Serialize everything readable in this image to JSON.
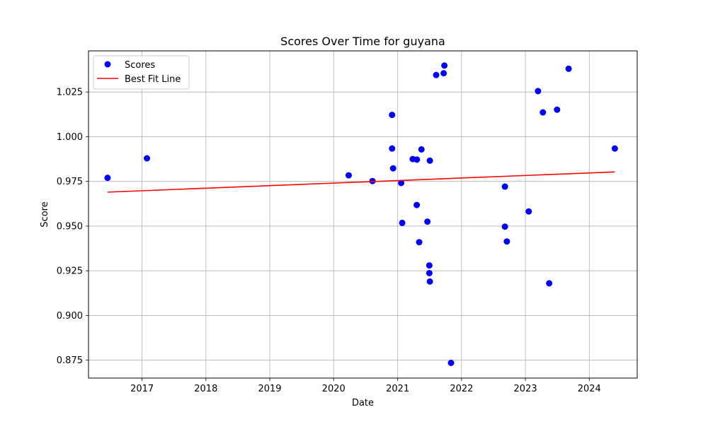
{
  "chart_data": {
    "type": "scatter",
    "title": "Scores Over Time for guyana",
    "xlabel": "Date",
    "ylabel": "Score",
    "x_axis_type": "date",
    "xlim": [
      "2016-03-01",
      "2024-10-01"
    ],
    "ylim": [
      0.865,
      1.048
    ],
    "x_ticks": [
      "2017-01-01",
      "2018-01-01",
      "2019-01-01",
      "2020-01-01",
      "2021-01-01",
      "2022-01-01",
      "2023-01-01",
      "2024-01-01"
    ],
    "x_tick_labels": [
      "2017",
      "2018",
      "2019",
      "2020",
      "2021",
      "2022",
      "2023",
      "2024"
    ],
    "y_ticks": [
      0.875,
      0.9,
      0.925,
      0.95,
      0.975,
      1.0,
      1.025
    ],
    "y_tick_labels": [
      "0.875",
      "0.900",
      "0.925",
      "0.950",
      "0.975",
      "1.000",
      "1.025"
    ],
    "grid": true,
    "legend_position": "upper-left",
    "series": [
      {
        "name": "Scores",
        "kind": "scatter",
        "color": "#0000ff",
        "points": [
          {
            "x": "2016-06-18",
            "y": 0.977
          },
          {
            "x": "2017-01-29",
            "y": 0.9879
          },
          {
            "x": "2020-03-27",
            "y": 0.9784
          },
          {
            "x": "2020-08-10",
            "y": 0.9752
          },
          {
            "x": "2020-11-30",
            "y": 1.0122
          },
          {
            "x": "2020-11-30",
            "y": 0.9934
          },
          {
            "x": "2020-12-06",
            "y": 0.9823
          },
          {
            "x": "2021-01-21",
            "y": 0.9741
          },
          {
            "x": "2021-01-27",
            "y": 0.9518
          },
          {
            "x": "2021-03-28",
            "y": 0.9875
          },
          {
            "x": "2021-04-20",
            "y": 0.9618
          },
          {
            "x": "2021-04-21",
            "y": 0.9872
          },
          {
            "x": "2021-05-04",
            "y": 0.941
          },
          {
            "x": "2021-05-17",
            "y": 0.9929
          },
          {
            "x": "2021-06-20",
            "y": 0.9525
          },
          {
            "x": "2021-07-04",
            "y": 0.9866
          },
          {
            "x": "2021-07-01",
            "y": 0.928
          },
          {
            "x": "2021-07-01",
            "y": 0.9237
          },
          {
            "x": "2021-07-04",
            "y": 0.919
          },
          {
            "x": "2021-08-09",
            "y": 1.0345
          },
          {
            "x": "2021-09-21",
            "y": 1.0355
          },
          {
            "x": "2021-09-25",
            "y": 1.0398
          },
          {
            "x": "2021-11-02",
            "y": 0.8735
          },
          {
            "x": "2022-09-06",
            "y": 0.9721
          },
          {
            "x": "2022-09-06",
            "y": 0.9497
          },
          {
            "x": "2022-09-17",
            "y": 0.9414
          },
          {
            "x": "2023-01-20",
            "y": 0.9582
          },
          {
            "x": "2023-03-14",
            "y": 1.0255
          },
          {
            "x": "2023-04-11",
            "y": 1.0136
          },
          {
            "x": "2023-05-17",
            "y": 0.918
          },
          {
            "x": "2023-07-01",
            "y": 1.0151
          },
          {
            "x": "2023-09-05",
            "y": 1.038
          },
          {
            "x": "2024-05-26",
            "y": 0.9934
          }
        ]
      },
      {
        "name": "Best Fit Line",
        "kind": "line",
        "color": "#ff0000",
        "points": [
          {
            "x": "2016-06-18",
            "y": 0.969
          },
          {
            "x": "2024-05-26",
            "y": 0.9803
          }
        ]
      }
    ]
  }
}
